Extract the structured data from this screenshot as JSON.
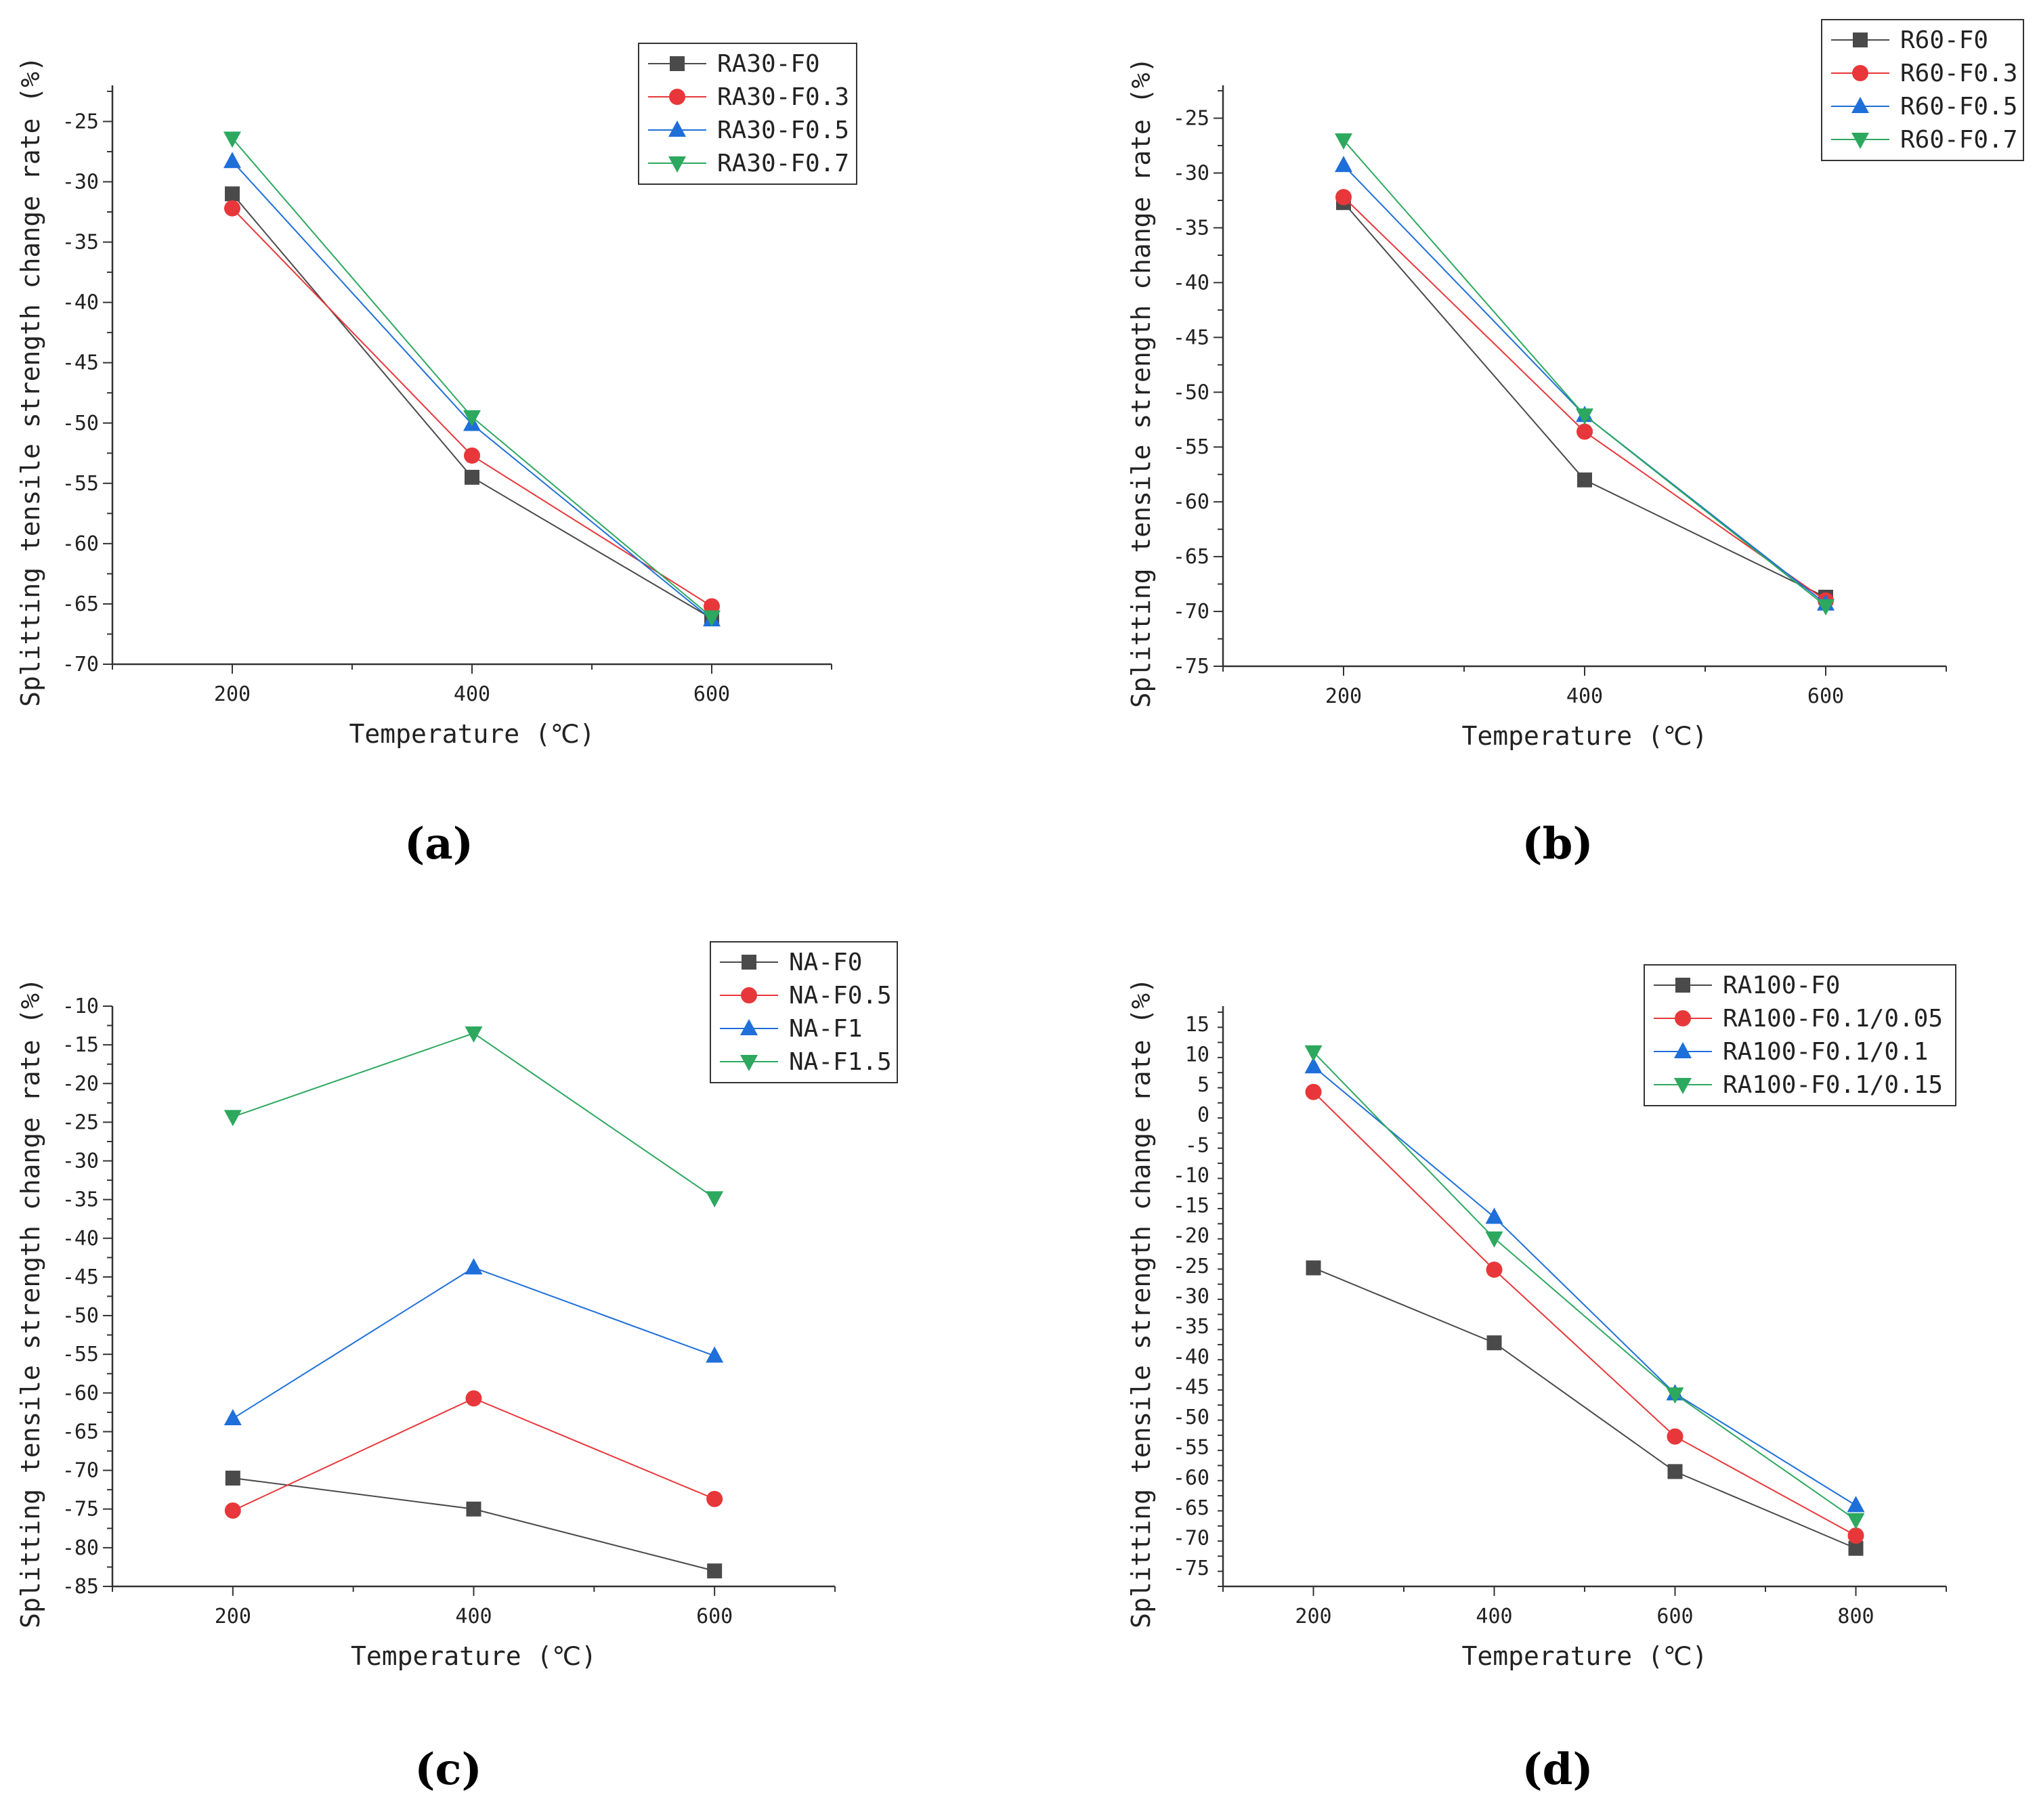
{
  "chart_data": [
    {
      "panel": "(a)",
      "type": "line",
      "xlabel": "Temperature (℃)",
      "ylabel": "Splitting tensile strength change rate (%)",
      "xlim": [
        100,
        700
      ],
      "ylim": [
        -70,
        -22
      ],
      "xticks": [
        200,
        400,
        600
      ],
      "yticks": [
        -70,
        -65,
        -60,
        -55,
        -50,
        -45,
        -40,
        -35,
        -30,
        -25
      ],
      "legend": "top-right",
      "x": [
        200,
        400,
        600
      ],
      "series": [
        {
          "name": "RA30-F0",
          "color": "#4a4a4a",
          "marker": "square",
          "values": [
            -31,
            -54.5,
            -66.2
          ]
        },
        {
          "name": "RA30-F0.3",
          "color": "#e8373a",
          "marker": "circle",
          "values": [
            -32.2,
            -52.7,
            -65.2
          ]
        },
        {
          "name": "RA30-F0.5",
          "color": "#1e6fd9",
          "marker": "triangle-up",
          "values": [
            -28.3,
            -50.1,
            -66.3
          ]
        },
        {
          "name": "RA30-F0.7",
          "color": "#2da85f",
          "marker": "triangle-down",
          "values": [
            -26.4,
            -49.5,
            -66.1
          ]
        }
      ]
    },
    {
      "panel": "(b)",
      "type": "line",
      "xlabel": "Temperature (℃)",
      "ylabel": "Splitting tensile strength change rate (%)",
      "xlim": [
        100,
        700
      ],
      "ylim": [
        -75,
        -22
      ],
      "xticks": [
        200,
        400,
        600
      ],
      "yticks": [
        -75,
        -70,
        -65,
        -60,
        -55,
        -50,
        -45,
        -40,
        -35,
        -30,
        -25
      ],
      "legend": "top-right",
      "x": [
        200,
        400,
        600
      ],
      "series": [
        {
          "name": "R60-F0",
          "color": "#4a4a4a",
          "marker": "square",
          "values": [
            -32.7,
            -58,
            -68.7
          ]
        },
        {
          "name": "R60-F0.3",
          "color": "#e8373a",
          "marker": "circle",
          "values": [
            -32.2,
            -53.6,
            -69
          ]
        },
        {
          "name": "R60-F0.5",
          "color": "#1e6fd9",
          "marker": "triangle-up",
          "values": [
            -29.3,
            -52.1,
            -69.3
          ]
        },
        {
          "name": "R60-F0.7",
          "color": "#2da85f",
          "marker": "triangle-down",
          "values": [
            -27,
            -52.1,
            -69.5
          ]
        }
      ]
    },
    {
      "panel": "(c)",
      "type": "line",
      "xlabel": "Temperature (℃)",
      "ylabel": "Splitting tensile strength change rate (%)",
      "xlim": [
        100,
        700
      ],
      "ylim": [
        -85,
        -10
      ],
      "xticks": [
        200,
        400,
        600
      ],
      "yticks": [
        -85,
        -80,
        -75,
        -70,
        -65,
        -60,
        -55,
        -50,
        -45,
        -40,
        -35,
        -30,
        -25,
        -20,
        -15,
        -10
      ],
      "legend": "top-right",
      "x": [
        200,
        400,
        600
      ],
      "series": [
        {
          "name": "NA-F0",
          "color": "#4a4a4a",
          "marker": "square",
          "values": [
            -71,
            -75,
            -83
          ]
        },
        {
          "name": "NA-F0.5",
          "color": "#e8373a",
          "marker": "circle",
          "values": [
            -75.2,
            -60.7,
            -73.7
          ]
        },
        {
          "name": "NA-F1",
          "color": "#1e6fd9",
          "marker": "triangle-up",
          "values": [
            -63.3,
            -43.8,
            -55.2
          ]
        },
        {
          "name": "NA-F1.5",
          "color": "#2da85f",
          "marker": "triangle-down",
          "values": [
            -24.3,
            -13.5,
            -34.8
          ]
        }
      ]
    },
    {
      "panel": "(d)",
      "type": "line",
      "xlabel": "Temperature (℃)",
      "ylabel": "Splitting tensile strength change rate (%)",
      "xlim": [
        100,
        900
      ],
      "ylim": [
        -78,
        18
      ],
      "xticks": [
        200,
        400,
        600,
        800
      ],
      "yticks": [
        -75,
        -70,
        -65,
        -60,
        -55,
        -50,
        -45,
        -40,
        -35,
        -30,
        -25,
        -20,
        -15,
        -10,
        -5,
        0,
        5,
        10,
        15
      ],
      "legend": "top-right",
      "x": [
        200,
        400,
        600,
        800
      ],
      "series": [
        {
          "name": "RA100-F0",
          "color": "#4a4a4a",
          "marker": "square",
          "values": [
            -25.3,
            -37.7,
            -59,
            -71.7
          ]
        },
        {
          "name": "RA100-F0.1/0.05",
          "color": "#e8373a",
          "marker": "circle",
          "values": [
            3.8,
            -25.6,
            -53.2,
            -69.6
          ]
        },
        {
          "name": "RA100-F0.1/0.1",
          "color": "#1e6fd9",
          "marker": "triangle-up",
          "values": [
            8,
            -16.9,
            -46.1,
            -64.6
          ]
        },
        {
          "name": "RA100-F0.1/0.15",
          "color": "#2da85f",
          "marker": "triangle-down",
          "values": [
            10.4,
            -20.4,
            -46.2,
            -67
          ]
        }
      ]
    }
  ]
}
